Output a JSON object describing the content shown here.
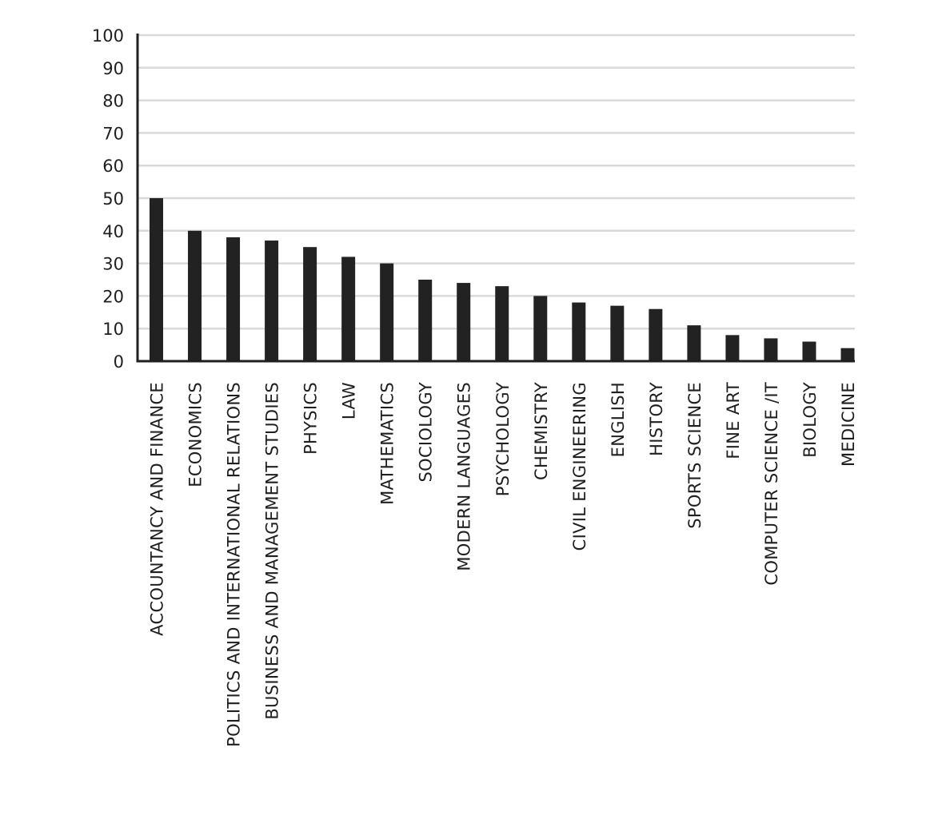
{
  "chart_data": {
    "type": "bar",
    "title": "",
    "xlabel": "",
    "ylabel": "",
    "ylim": [
      0,
      100
    ],
    "yticks": [
      0,
      10,
      20,
      30,
      40,
      50,
      60,
      70,
      80,
      90,
      100
    ],
    "grid": true,
    "legend": "none",
    "bar_color": "#222222",
    "grid_color": "#d9d9d9",
    "categories": [
      "ACCOUNTANCY AND FINANCE",
      "ECONOMICS",
      "POLITICS AND INTERNATIONAL RELATIONS",
      "BUSINESS AND MANAGEMENT STUDIES",
      "PHYSICS",
      "LAW",
      "MATHEMATICS",
      "SOCIOLOGY",
      "MODERN LANGUAGES",
      "PSYCHOLOGY",
      "CHEMISTRY",
      "CIVIL ENGINEERING",
      "ENGLISH",
      "HISTORY",
      "SPORTS SCIENCE",
      "FINE ART",
      "COMPUTER SCIENCE /IT",
      "BIOLOGY",
      "MEDICINE"
    ],
    "values": [
      50,
      40,
      38,
      37,
      35,
      32,
      30,
      25,
      24,
      23,
      20,
      18,
      17,
      16,
      11,
      8,
      7,
      6,
      4
    ]
  }
}
